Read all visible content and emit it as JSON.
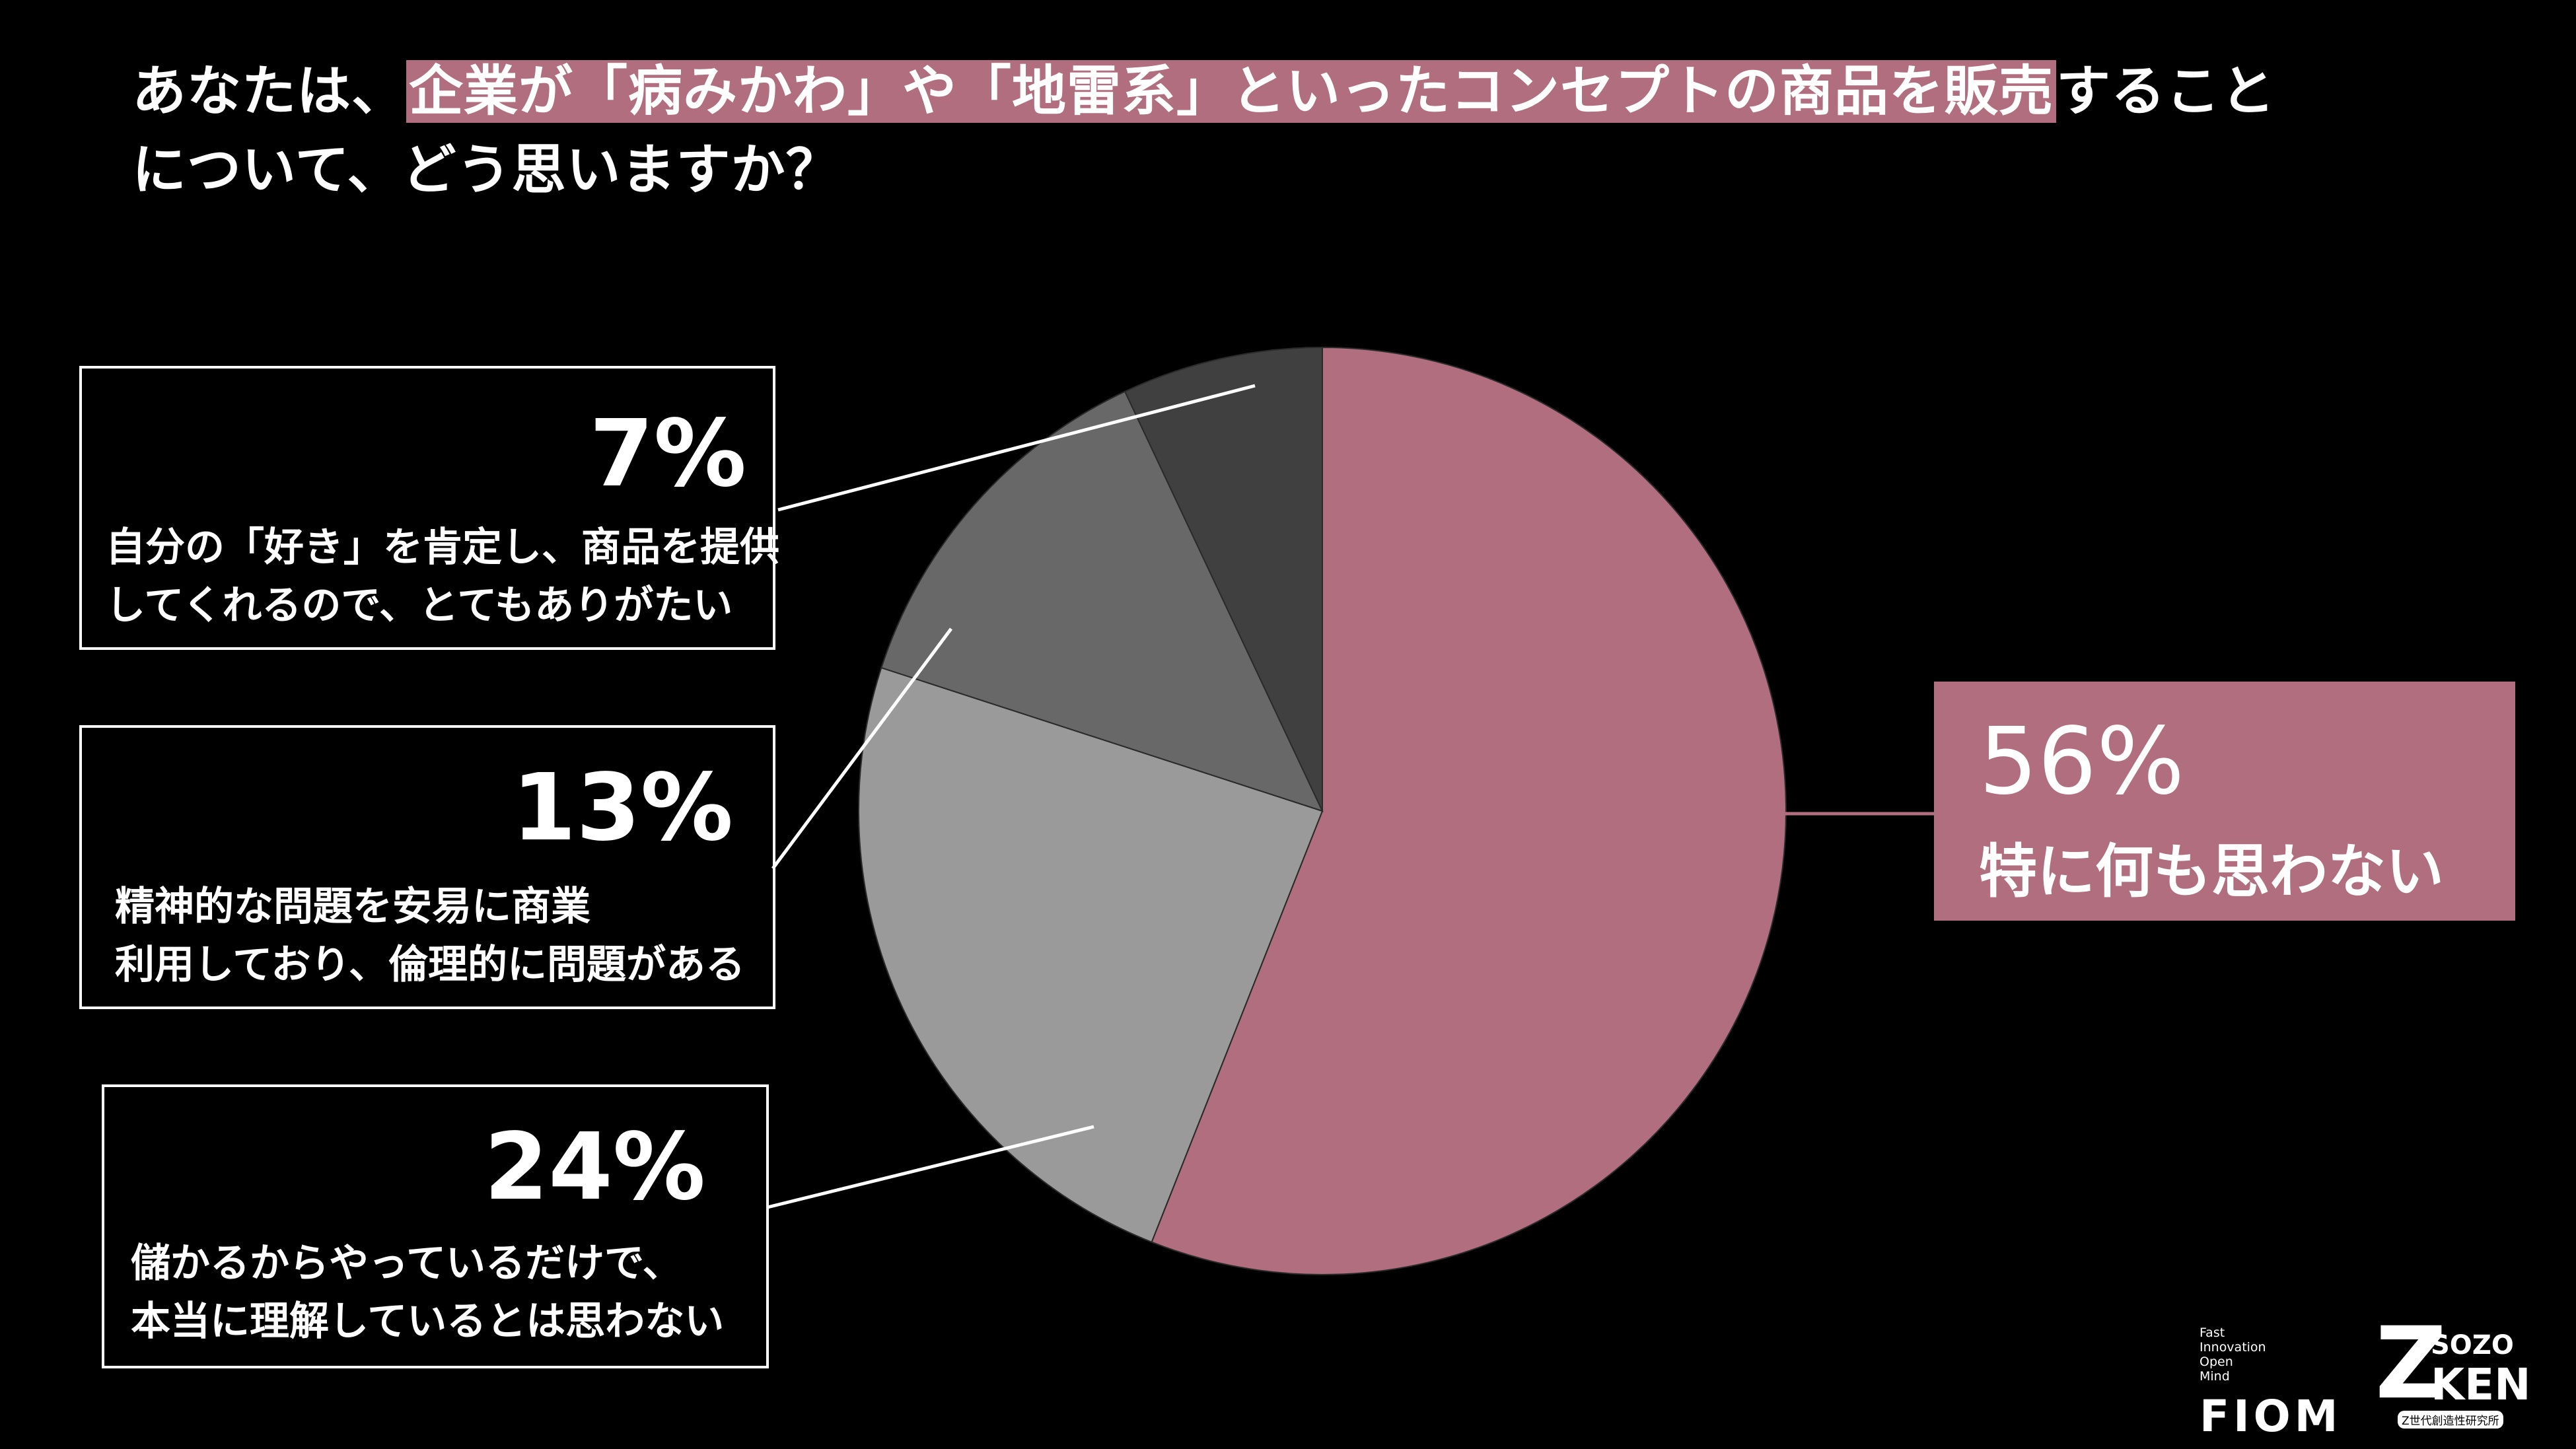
{
  "title": {
    "part1": "あなたは、",
    "highlight": "企業が「病みかわ」や「地雷系」といったコンセプトの商品を販売",
    "part2": "すること",
    "line2": "について、どう思いますか？"
  },
  "colors": {
    "background": "#000000",
    "accent": "#b06e7e",
    "slice_light": "#9a9a9a",
    "slice_mid": "#686868",
    "slice_dark": "#404040",
    "text": "#ffffff"
  },
  "chart_data": {
    "type": "pie",
    "start": "12 o'clock, clockwise",
    "slices": [
      {
        "label": "特に何も思わない",
        "value": 56,
        "pct_text": "56%",
        "color": "#b06e7e"
      },
      {
        "label": "儲かるからやっているだけで、本当に理解しているとは思わない",
        "value": 24,
        "pct_text": "24%",
        "color": "#9a9a9a"
      },
      {
        "label": "精神的な問題を安易に商業利用しており、倫理的に問題がある",
        "value": 13,
        "pct_text": "13%",
        "color": "#686868"
      },
      {
        "label": "自分の「好き」を肯定し、商品を提供してくれるので、とてもありがたい",
        "value": 7,
        "pct_text": "7%",
        "color": "#404040"
      }
    ]
  },
  "labels": {
    "main": {
      "pct": "56%",
      "line1": "特に何も思わない"
    },
    "box7": {
      "pct": "7%",
      "line1": "自分の「好き」を肯定し、商品を提供",
      "line2": "してくれるので、とてもありがたい"
    },
    "box13": {
      "pct": "13%",
      "line1": "精神的な問題を安易に商業",
      "line2": "利用しており、倫理的に問題がある"
    },
    "box24": {
      "pct": "24%",
      "line1": "儲かるからやっているだけで、",
      "line2": "本当に理解しているとは思わない"
    }
  },
  "logos": {
    "fiom": {
      "lines": [
        "Fast",
        "Innovation",
        "Open",
        "Mind"
      ],
      "name": "FIOM"
    },
    "sozoken": {
      "z": "Z",
      "sozo": "SOZO",
      "ken": "KEN",
      "sub": "Z世代創造性研究所"
    }
  }
}
